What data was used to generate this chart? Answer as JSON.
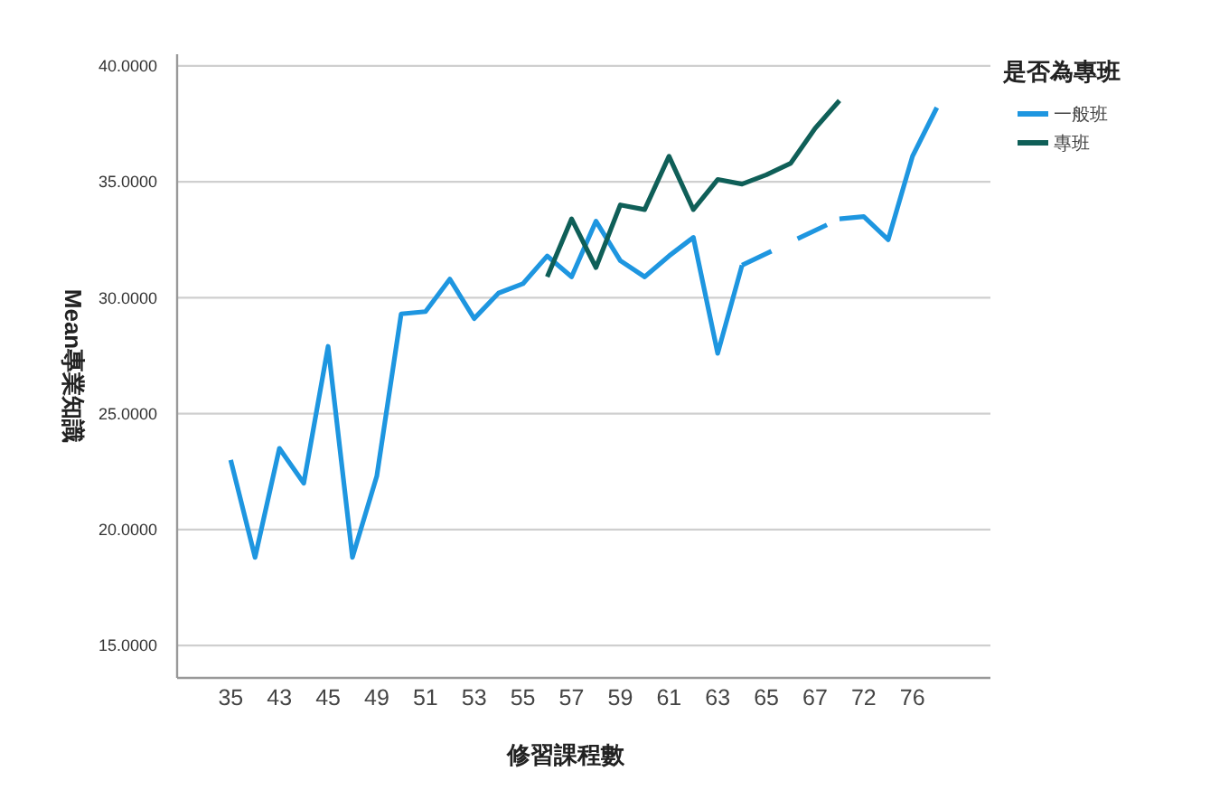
{
  "chart_data": {
    "type": "line",
    "xlabel": "修習課程數",
    "ylabel": "Mean專業知識",
    "legend_title": "是否為專班",
    "categories": [
      "35",
      null,
      "43",
      null,
      "45",
      null,
      "49",
      null,
      "51",
      null,
      "53",
      null,
      "55",
      null,
      "57",
      null,
      "59",
      null,
      "61",
      null,
      "63",
      null,
      "65",
      null,
      "67",
      null,
      "72",
      null,
      "76",
      null
    ],
    "series": [
      {
        "name": "一般班",
        "color": "#1e96e0",
        "values": [
          23.0,
          18.8,
          23.5,
          22.0,
          27.9,
          18.8,
          22.3,
          29.3,
          29.4,
          30.8,
          29.1,
          30.2,
          30.6,
          31.8,
          30.9,
          33.3,
          31.6,
          30.9,
          31.8,
          32.6,
          27.6,
          31.4,
          null,
          null,
          null,
          33.4,
          33.5,
          32.5,
          36.1,
          38.2
        ]
      },
      {
        "name": "專班",
        "color": "#0f5f58",
        "values": [
          null,
          null,
          null,
          null,
          null,
          null,
          null,
          null,
          null,
          null,
          null,
          null,
          null,
          30.9,
          33.4,
          31.3,
          34.0,
          33.8,
          36.1,
          33.8,
          35.1,
          34.9,
          35.3,
          35.8,
          37.3,
          38.5,
          null,
          null,
          null,
          null
        ]
      }
    ],
    "ylim": [
      13.6,
      40.5
    ],
    "yticks": [
      {
        "value": 15,
        "label": "15.0000"
      },
      {
        "value": 20,
        "label": "20.0000"
      },
      {
        "value": 25,
        "label": "25.0000"
      },
      {
        "value": 30,
        "label": "30.0000"
      },
      {
        "value": 35,
        "label": "35.0000"
      },
      {
        "value": 40,
        "label": "40.0000"
      }
    ],
    "grid": "y",
    "legend": "top right",
    "marker": "none",
    "line_style": "solid"
  }
}
